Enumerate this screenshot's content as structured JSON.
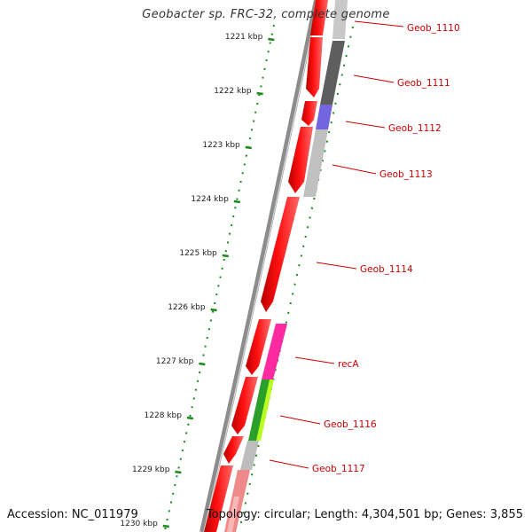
{
  "title": "Geobacter sp. FRC-32, complete genome",
  "footer": {
    "accession": "Accession: NC_011979",
    "summary": "Topology: circular; Length: 4,304,501 bp; Genes: 3,855"
  },
  "colors": {
    "background": "#ffffff",
    "backbone": "#8c8c8c",
    "gene_forward": "#ff0000",
    "tick": "#1a8a1a",
    "label": "#cc0000"
  },
  "ticks": [
    "1221 kbp",
    "1222 kbp",
    "1223 kbp",
    "1224 kbp",
    "1225 kbp",
    "1226 kbp",
    "1227 kbp",
    "1228 kbp",
    "1229 kbp",
    "1230 kbp"
  ],
  "gene_labels": [
    "Geob_1110",
    "Geob_1111",
    "Geob_1112",
    "Geob_1113",
    "Geob_1114",
    "recA",
    "Geob_1116",
    "Geob_1117"
  ]
}
